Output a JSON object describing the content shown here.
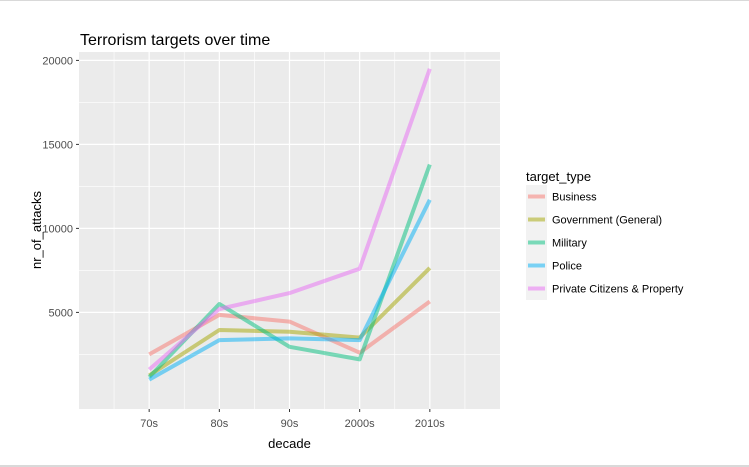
{
  "chart_data": {
    "type": "line",
    "title": "Terrorism targets over time",
    "xlabel": "decade",
    "ylabel": "nr_of_attacks",
    "categories": [
      "70s",
      "80s",
      "90s",
      "2000s",
      "2010s"
    ],
    "yticks": [
      5000,
      10000,
      15000,
      20000
    ],
    "ylim": [
      -750,
      20500
    ],
    "grid": true,
    "legend": {
      "title": "target_type",
      "position": "right"
    },
    "series": [
      {
        "name": "Business",
        "color": "#F8766D",
        "values": [
          2500,
          4850,
          4450,
          2600,
          5650
        ]
      },
      {
        "name": "Government (General)",
        "color": "#A3A500",
        "values": [
          1250,
          3950,
          3850,
          3500,
          7650
        ]
      },
      {
        "name": "Military",
        "color": "#00BF7D",
        "values": [
          1150,
          5500,
          2950,
          2200,
          13800
        ]
      },
      {
        "name": "Police",
        "color": "#00B0F6",
        "values": [
          1000,
          3350,
          3450,
          3350,
          11700
        ]
      },
      {
        "name": "Private Citizens & Property",
        "color": "#E76BF3",
        "values": [
          1600,
          5200,
          6150,
          7600,
          19500
        ]
      }
    ]
  }
}
